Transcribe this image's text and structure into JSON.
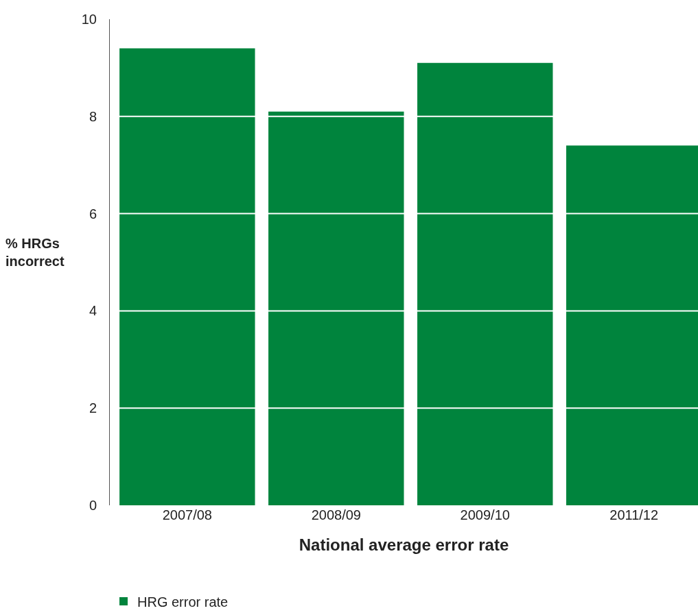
{
  "chart_data": {
    "type": "bar",
    "xlabel": "National average error rate",
    "ylabel": "% HRGs\nincorrect",
    "categories": [
      "2007/08",
      "2008/09",
      "2009/10",
      "2011/12"
    ],
    "series": [
      {
        "name": "HRG error rate",
        "color": "#00843d",
        "values": [
          9.4,
          8.1,
          9.1,
          7.4
        ]
      }
    ],
    "ylim": [
      0,
      10
    ],
    "yticks": [
      0,
      2,
      4,
      6,
      8,
      10
    ],
    "grid": "y",
    "legend": "bottom left"
  }
}
